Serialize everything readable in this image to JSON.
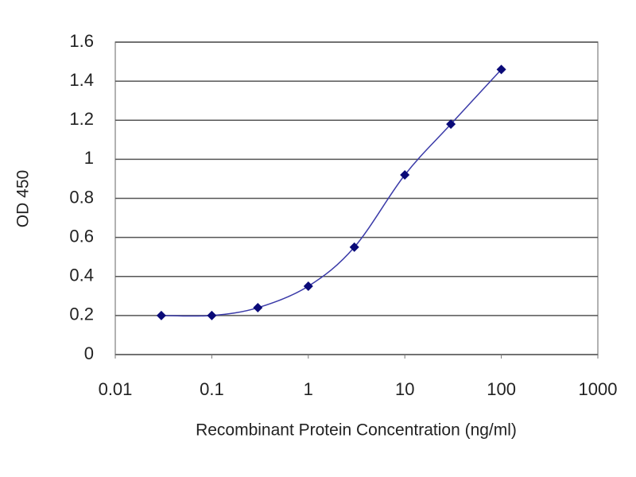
{
  "chart_data": {
    "type": "line",
    "xlabel": "Recombinant Protein Concentration (ng/ml)",
    "ylabel": "OD 450",
    "x": [
      0.03,
      0.1,
      0.3,
      1,
      3,
      10,
      30,
      100
    ],
    "values": [
      0.2,
      0.2,
      0.24,
      0.35,
      0.55,
      0.92,
      1.18,
      1.46
    ],
    "color": "#3a3aa8",
    "marker_color": "#0a0a78",
    "xscale": "log",
    "xlim": [
      0.01,
      1000
    ],
    "xticks": [
      0.01,
      0.1,
      1,
      10,
      100,
      1000
    ],
    "ylim": [
      0,
      1.6
    ],
    "yticks": [
      0,
      0.2,
      0.4,
      0.6,
      0.8,
      1,
      1.2,
      1.4,
      1.6
    ],
    "grid": true
  }
}
